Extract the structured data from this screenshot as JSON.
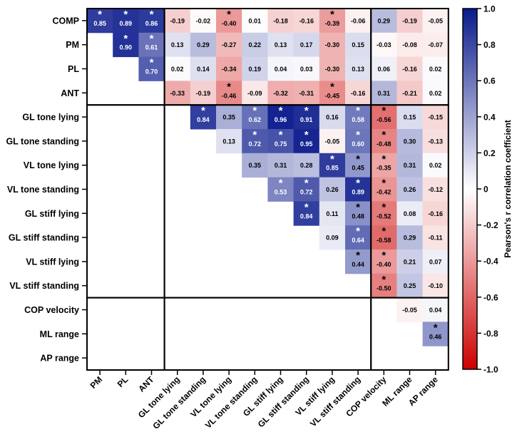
{
  "chart_data": {
    "type": "heatmap",
    "rows": [
      "COMP",
      "PM",
      "PL",
      "ANT",
      "GL tone lying",
      "GL tone standing",
      "VL tone lying",
      "VL tone standing",
      "GL stiff lying",
      "GL stiff standing",
      "VL stiff lying",
      "VL stiff standing",
      "COP velocity",
      "ML range",
      "AP range"
    ],
    "columns": [
      "PM",
      "PL",
      "ANT",
      "GL tone lying",
      "GL tone standing",
      "VL tone lying",
      "VL tone standing",
      "GL stiff lying",
      "GL stiff standing",
      "VL stiff lying",
      "VL stiff standing",
      "COP velocity",
      "ML range",
      "AP range"
    ],
    "values": [
      [
        0.85,
        0.89,
        0.86,
        -0.19,
        -0.02,
        -0.4,
        0.01,
        -0.18,
        -0.16,
        -0.39,
        -0.06,
        0.29,
        -0.19,
        -0.05
      ],
      [
        null,
        0.9,
        0.61,
        0.13,
        0.29,
        -0.27,
        0.22,
        0.13,
        0.17,
        -0.3,
        0.15,
        -0.03,
        -0.08,
        -0.07
      ],
      [
        null,
        null,
        0.7,
        0.02,
        0.14,
        -0.34,
        0.19,
        0.04,
        0.03,
        -0.3,
        0.13,
        0.06,
        -0.16,
        0.02
      ],
      [
        null,
        null,
        null,
        -0.33,
        -0.19,
        -0.46,
        -0.09,
        -0.32,
        -0.31,
        -0.45,
        -0.16,
        0.31,
        -0.21,
        0.02
      ],
      [
        null,
        null,
        null,
        null,
        0.84,
        0.35,
        0.62,
        0.96,
        0.91,
        0.16,
        0.58,
        -0.56,
        0.15,
        -0.15
      ],
      [
        null,
        null,
        null,
        null,
        null,
        0.13,
        0.72,
        0.75,
        0.95,
        -0.05,
        0.6,
        -0.48,
        0.3,
        -0.13
      ],
      [
        null,
        null,
        null,
        null,
        null,
        null,
        0.35,
        0.31,
        0.28,
        0.85,
        0.45,
        -0.35,
        0.31,
        0.02
      ],
      [
        null,
        null,
        null,
        null,
        null,
        null,
        null,
        0.53,
        0.72,
        0.26,
        0.89,
        -0.42,
        0.26,
        -0.12
      ],
      [
        null,
        null,
        null,
        null,
        null,
        null,
        null,
        null,
        0.84,
        0.11,
        0.48,
        -0.52,
        0.08,
        -0.16
      ],
      [
        null,
        null,
        null,
        null,
        null,
        null,
        null,
        null,
        null,
        0.09,
        0.64,
        -0.58,
        0.29,
        -0.11
      ],
      [
        null,
        null,
        null,
        null,
        null,
        null,
        null,
        null,
        null,
        null,
        0.44,
        -0.4,
        0.21,
        0.07
      ],
      [
        null,
        null,
        null,
        null,
        null,
        null,
        null,
        null,
        null,
        null,
        null,
        -0.5,
        0.25,
        -0.1
      ],
      [
        null,
        null,
        null,
        null,
        null,
        null,
        null,
        null,
        null,
        null,
        null,
        null,
        -0.05,
        0.04
      ],
      [
        null,
        null,
        null,
        null,
        null,
        null,
        null,
        null,
        null,
        null,
        null,
        null,
        null,
        0.46
      ],
      [
        null,
        null,
        null,
        null,
        null,
        null,
        null,
        null,
        null,
        null,
        null,
        null,
        null,
        null
      ]
    ],
    "significant": [
      [
        0,
        0
      ],
      [
        0,
        1
      ],
      [
        0,
        2
      ],
      [
        0,
        5
      ],
      [
        0,
        9
      ],
      [
        1,
        1
      ],
      [
        1,
        2
      ],
      [
        2,
        2
      ],
      [
        3,
        5
      ],
      [
        3,
        9
      ],
      [
        4,
        4
      ],
      [
        4,
        6
      ],
      [
        4,
        7
      ],
      [
        4,
        8
      ],
      [
        4,
        10
      ],
      [
        4,
        11
      ],
      [
        5,
        6
      ],
      [
        5,
        7
      ],
      [
        5,
        8
      ],
      [
        5,
        10
      ],
      [
        5,
        11
      ],
      [
        6,
        9
      ],
      [
        6,
        10
      ],
      [
        6,
        11
      ],
      [
        7,
        7
      ],
      [
        7,
        8
      ],
      [
        7,
        10
      ],
      [
        7,
        11
      ],
      [
        8,
        8
      ],
      [
        8,
        10
      ],
      [
        8,
        11
      ],
      [
        9,
        10
      ],
      [
        9,
        11
      ],
      [
        10,
        10
      ],
      [
        10,
        11
      ],
      [
        11,
        11
      ],
      [
        13,
        13
      ]
    ],
    "star_symbol": "*",
    "colorbar": {
      "label": "Pearson's r correlation coefficient",
      "range": [
        -1.0,
        1.0
      ],
      "ticks": [
        "1.0",
        "0.8",
        "0.6",
        "0.4",
        "0.2",
        "0",
        "-0.2",
        "-0.4",
        "-0.6",
        "-0.8",
        "-1.0"
      ],
      "color_max": "#0a1a8c",
      "color_mid": "#ffffff",
      "color_min": "#cc0000"
    },
    "row_groups": [
      [
        0,
        3
      ],
      [
        4,
        11
      ],
      [
        12,
        14
      ]
    ],
    "column_groups": [
      [
        0,
        2
      ],
      [
        3,
        10
      ],
      [
        11,
        13
      ]
    ]
  }
}
